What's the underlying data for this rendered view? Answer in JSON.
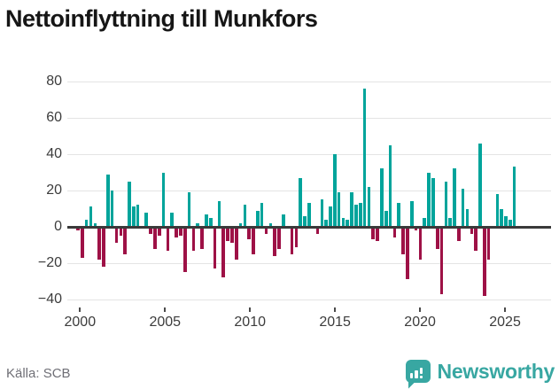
{
  "title": "Nettoinflyttning till Munkfors",
  "source": "Källa: SCB",
  "brand": {
    "name": "Newsworthy",
    "icon": "newsworthy-speech-bubble-chart-icon"
  },
  "colors": {
    "positive_bar": "#00a49b",
    "negative_bar": "#9e1146",
    "zero_line": "#3a3a3a",
    "gridline": "#e4e4e4",
    "title_text": "#161616",
    "axis_text": "#3c3c3c",
    "source_text": "#6f6f76",
    "brand_teal": "#38a7a2"
  },
  "chart_data": {
    "type": "bar",
    "title": "Nettoinflyttning till Munkfors",
    "xlabel": "",
    "ylabel": "",
    "frequency": "quarterly",
    "start": "2000 Q1",
    "end": "2025 Q3",
    "ylim": [
      -44,
      84
    ],
    "grid": "horizontal",
    "legend": "none",
    "y_tick_values": [
      80,
      60,
      40,
      20,
      0,
      -20,
      -40
    ],
    "y_tick_labels": [
      "80",
      "60",
      "40",
      "20",
      "0",
      "−20",
      "−40"
    ],
    "x_tick_years": [
      2000,
      2005,
      2010,
      2015,
      2020,
      2025
    ],
    "x_tick_labels": [
      "2000",
      "2005",
      "2010",
      "2015",
      "2020",
      "2025"
    ],
    "values": [
      -2,
      -17,
      4,
      11,
      2,
      -18,
      -22,
      29,
      20,
      -9,
      -5,
      -15,
      25,
      11,
      12,
      0,
      8,
      -4,
      -12,
      -5,
      30,
      -13,
      8,
      -6,
      -5,
      -25,
      19,
      -13,
      2,
      -12,
      7,
      5,
      -23,
      14,
      -28,
      -8,
      -9,
      -18,
      2,
      12,
      -7,
      -15,
      9,
      13,
      -4,
      2,
      -16,
      -12,
      7,
      0,
      -15,
      -11,
      27,
      6,
      13,
      0,
      -4,
      15,
      4,
      11,
      40,
      19,
      5,
      4,
      19,
      12,
      13,
      76,
      22,
      -7,
      -8,
      32,
      9,
      45,
      -6,
      13,
      -15,
      -29,
      14,
      -2,
      -18,
      5,
      30,
      27,
      -12,
      -37,
      25,
      5,
      32,
      -8,
      21,
      10,
      -4,
      -13,
      46,
      -38,
      -18,
      0,
      18,
      10,
      6,
      4,
      33
    ]
  }
}
